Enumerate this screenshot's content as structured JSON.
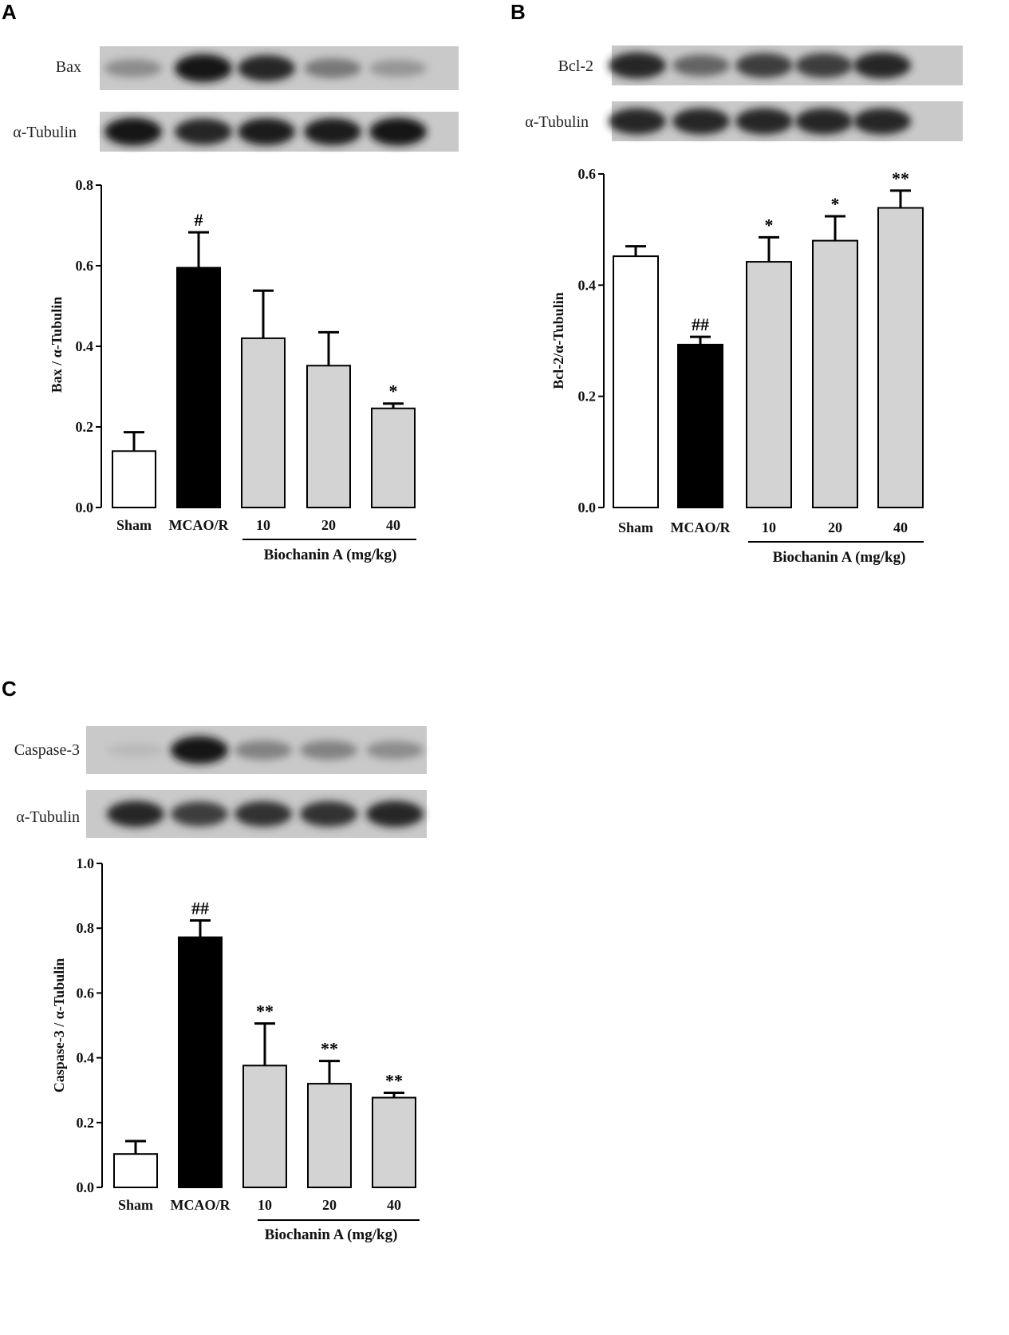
{
  "panels": [
    {
      "letter": "A",
      "blots": [
        {
          "label": "Bax",
          "intensities": [
            0.35,
            0.95,
            0.85,
            0.45,
            0.3
          ]
        },
        {
          "label": "α-Tubulin",
          "intensities": [
            0.95,
            0.85,
            0.9,
            0.9,
            0.95
          ]
        }
      ],
      "chart_data": {
        "type": "bar",
        "categories": [
          "Sham",
          "MCAO/R",
          "10",
          "20",
          "40"
        ],
        "values": [
          0.14,
          0.595,
          0.42,
          0.352,
          0.246
        ],
        "errors": [
          0.047,
          0.088,
          0.118,
          0.083,
          0.012
        ],
        "significance": [
          "",
          "#",
          "",
          "",
          "*"
        ],
        "ylabel": "Bax / α-Tubulin",
        "group_label": "Biochanin A (mg/kg)",
        "ylim": [
          0,
          0.8
        ],
        "yticks": [
          "0.0",
          "0.2",
          "0.4",
          "0.6",
          "0.8"
        ],
        "bar_colors": [
          "#ffffff",
          "#000000",
          "#d3d3d3",
          "#d3d3d3",
          "#d3d3d3"
        ]
      }
    },
    {
      "letter": "B",
      "blots": [
        {
          "label": "Bcl-2",
          "intensities": [
            0.85,
            0.55,
            0.75,
            0.75,
            0.85
          ]
        },
        {
          "label": "α-Tubulin",
          "intensities": [
            0.85,
            0.85,
            0.85,
            0.85,
            0.85
          ]
        }
      ],
      "chart_data": {
        "type": "bar",
        "categories": [
          "Sham",
          "MCAO/R",
          "10",
          "20",
          "40"
        ],
        "values": [
          0.452,
          0.293,
          0.442,
          0.48,
          0.539
        ],
        "errors": [
          0.018,
          0.014,
          0.044,
          0.044,
          0.031
        ],
        "significance": [
          "",
          "##",
          "*",
          "*",
          "**"
        ],
        "ylabel": "Bcl-2/α-Tubulin",
        "group_label": "Biochanin A (mg/kg)",
        "ylim": [
          0,
          0.6
        ],
        "yticks": [
          "0.0",
          "0.2",
          "0.4",
          "0.6"
        ],
        "bar_colors": [
          "#ffffff",
          "#000000",
          "#d3d3d3",
          "#d3d3d3",
          "#d3d3d3"
        ]
      }
    },
    {
      "letter": "C",
      "blots": [
        {
          "label": "Caspase-3",
          "intensities": [
            0.12,
            0.95,
            0.4,
            0.4,
            0.35
          ]
        },
        {
          "label": "α-Tubulin",
          "intensities": [
            0.85,
            0.75,
            0.8,
            0.8,
            0.85
          ]
        }
      ],
      "chart_data": {
        "type": "bar",
        "categories": [
          "Sham",
          "MCAO/R",
          "10",
          "20",
          "40"
        ],
        "values": [
          0.103,
          0.772,
          0.376,
          0.32,
          0.277
        ],
        "errors": [
          0.04,
          0.052,
          0.13,
          0.07,
          0.015
        ],
        "significance": [
          "",
          "##",
          "**",
          "**",
          "**"
        ],
        "ylabel": "Caspase-3 / α-Tubulin",
        "group_label": "Biochanin A (mg/kg)",
        "ylim": [
          0,
          1.0
        ],
        "yticks": [
          "0.0",
          "0.2",
          "0.4",
          "0.6",
          "0.8",
          "1.0"
        ],
        "bar_colors": [
          "#ffffff",
          "#000000",
          "#d3d3d3",
          "#d3d3d3",
          "#d3d3d3"
        ]
      }
    }
  ]
}
